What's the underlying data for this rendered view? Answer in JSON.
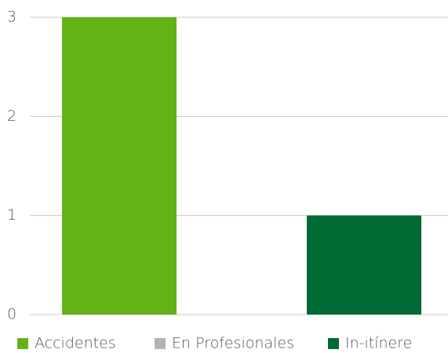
{
  "chart_data": {
    "type": "bar",
    "categories": [
      null
    ],
    "series": [
      {
        "name": "Accidentes",
        "color": "#62b416",
        "values": [
          3
        ]
      },
      {
        "name": "En Profesionales",
        "color": "#b3b3b3",
        "values": [
          0
        ]
      },
      {
        "name": "In-itínere",
        "color": "#006a35",
        "values": [
          1
        ]
      }
    ],
    "ylim": [
      0,
      3
    ],
    "yticks": [
      0,
      1,
      2,
      3
    ],
    "grid": true,
    "legend": "bottom"
  }
}
